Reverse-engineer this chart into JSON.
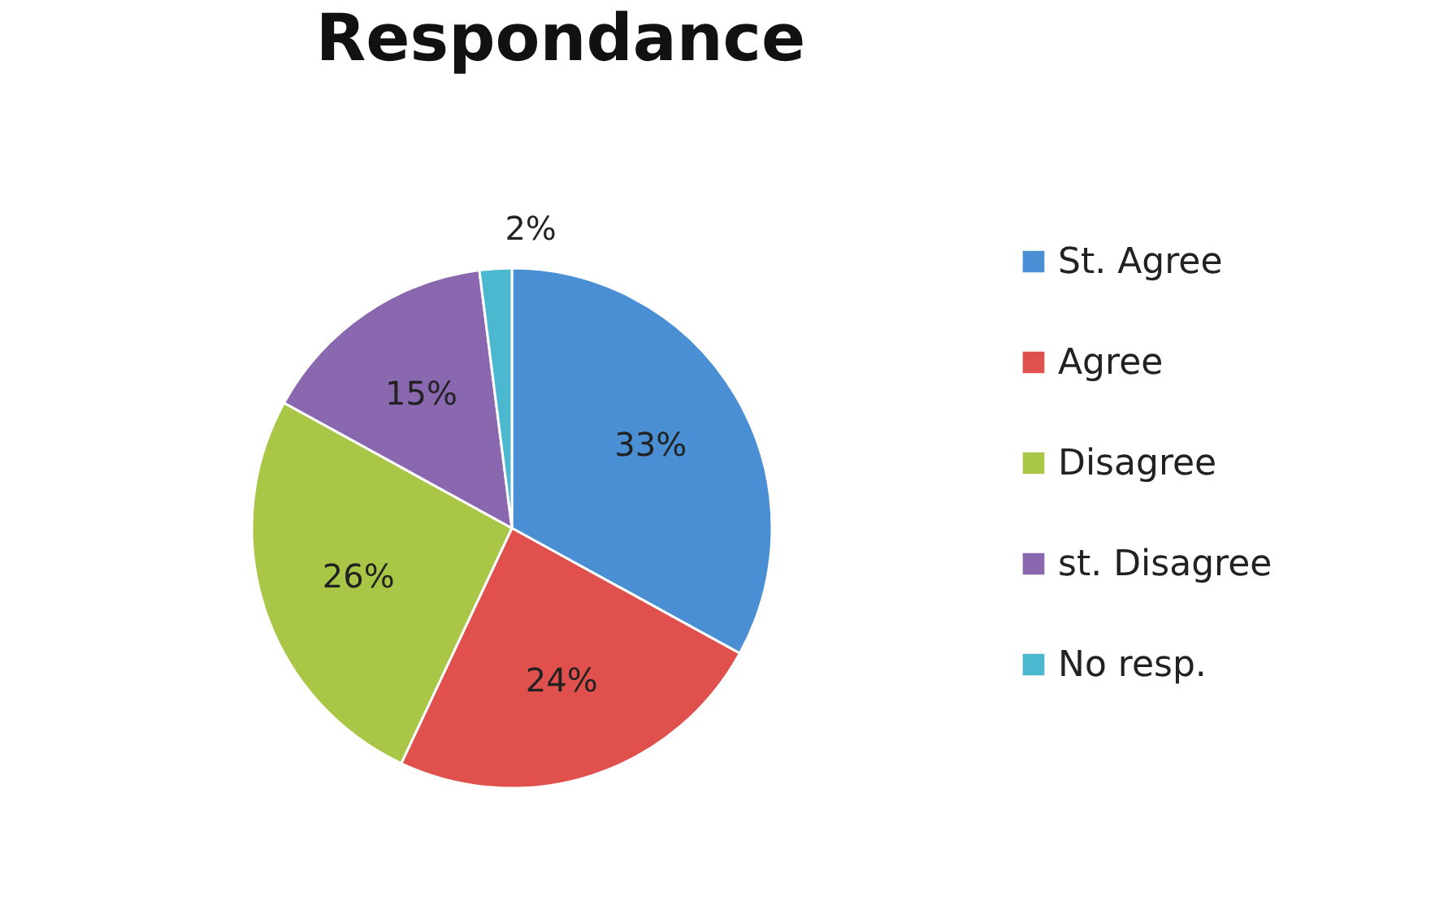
{
  "chart_data": {
    "type": "pie",
    "title": "Respondance",
    "categories": [
      "St. Agree",
      "Agree",
      "Disagree",
      "st. Disagree",
      "No resp."
    ],
    "values": [
      33,
      24,
      26,
      15,
      2
    ],
    "value_labels": [
      "33%",
      "24%",
      "26%",
      "15%",
      "2%"
    ],
    "colors": [
      "#4a8fd4",
      "#e0504c",
      "#a9c646",
      "#8a68b0",
      "#4cb8cf"
    ],
    "legend": "right"
  }
}
